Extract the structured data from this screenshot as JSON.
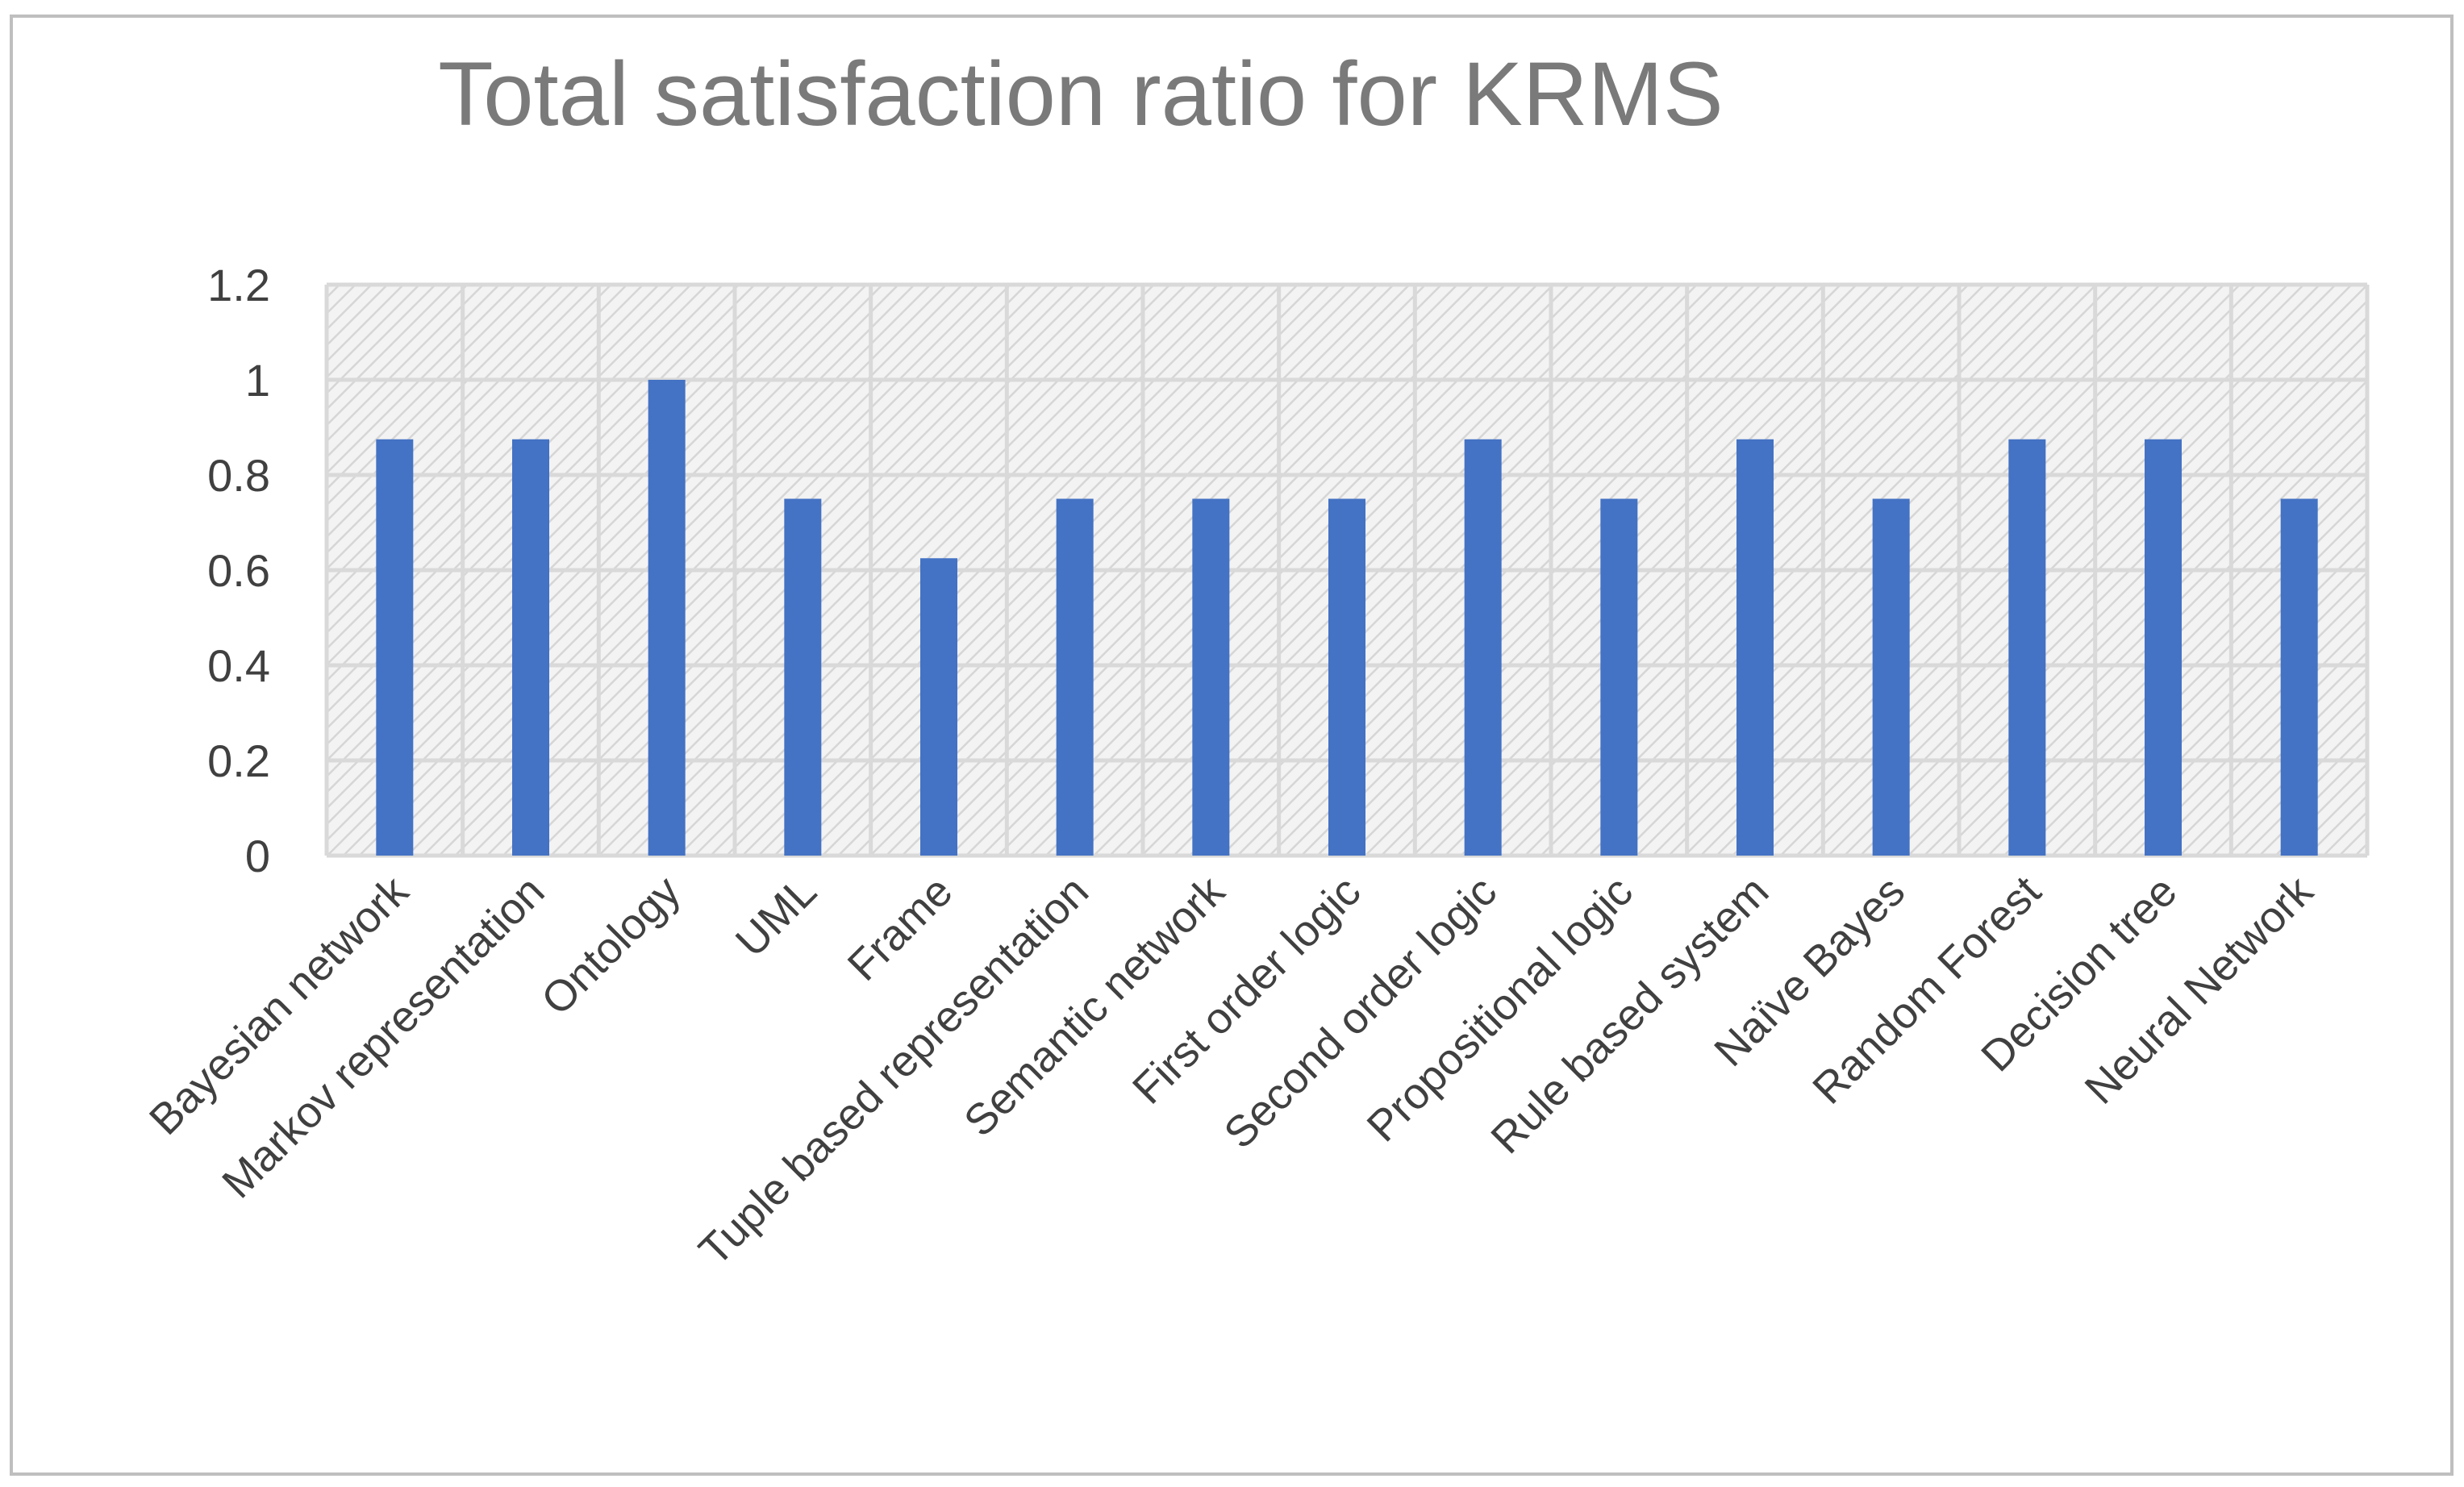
{
  "chart_data": {
    "type": "bar",
    "title": "Total satisfaction ratio for KRMS",
    "xlabel": "",
    "ylabel": "",
    "categories": [
      "Bayesian network",
      "Markov representation",
      "Ontology",
      "UML",
      "Frame",
      "Tuple based representation",
      "Semantic network",
      "First order logic",
      "Second order logic",
      "Propositional logic",
      "Rule based system",
      "Naïve Bayes",
      "Random Forest",
      "Decision tree",
      "Neural Network"
    ],
    "values": [
      0.875,
      0.875,
      1.0,
      0.75,
      0.625,
      0.75,
      0.75,
      0.75,
      0.875,
      0.75,
      0.875,
      0.75,
      0.875,
      0.875,
      0.75
    ],
    "ylim": [
      0,
      1.2
    ],
    "yticks": [
      "0",
      "0.2",
      "0.4",
      "0.6",
      "0.8",
      "1",
      "1.2"
    ],
    "grid": true,
    "legend": "none",
    "colors": {
      "bar": "#4472c4",
      "grid": "#d9d9d9",
      "plot_background": "#f2f2f2",
      "hatch": "#d9d9d9",
      "border": "#bfbfbf",
      "title": "#7a7a7a",
      "text": "#404040"
    }
  }
}
